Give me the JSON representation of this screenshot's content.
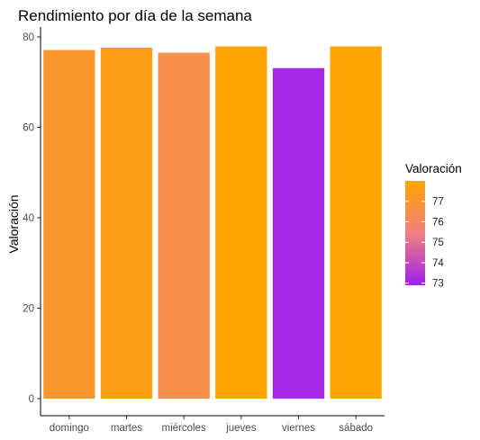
{
  "chart_data": {
    "type": "bar",
    "title": "Rendimiento por día de la semana",
    "xlabel": "",
    "ylabel": "Valoración",
    "categories": [
      "domingo",
      "martes",
      "miércoles",
      "jueves",
      "viernes",
      "sábado"
    ],
    "values": [
      77.1,
      77.6,
      76.5,
      77.9,
      73.1,
      77.9
    ],
    "ylim": [
      0,
      80
    ],
    "yticks": [
      0,
      20,
      40,
      60,
      80
    ],
    "grid": false,
    "legend": {
      "title": "Valoración",
      "placement": "right",
      "ticks": [
        77,
        76,
        75,
        74,
        73
      ],
      "range": [
        72.9,
        78.0
      ],
      "color_low": "#a020f0",
      "color_mid": "#f08080",
      "color_high": "#ffa500"
    }
  }
}
